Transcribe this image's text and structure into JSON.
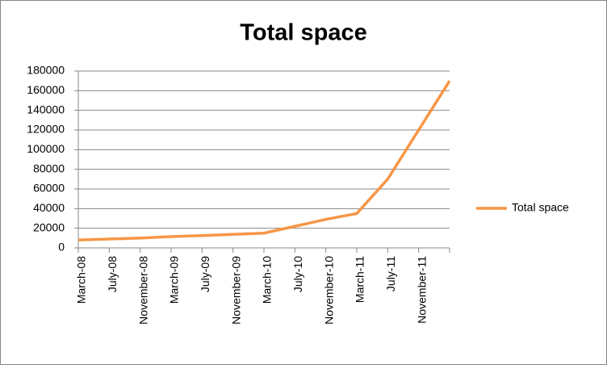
{
  "chart_data": {
    "type": "line",
    "title": "Total space",
    "categories": [
      "March-08",
      "July-08",
      "November-08",
      "March-09",
      "July-09",
      "November-09",
      "March-10",
      "July-10",
      "November-10",
      "March-11",
      "July-11",
      "November-11",
      null
    ],
    "series": [
      {
        "name": "Total space",
        "color": "#f79646",
        "values": [
          8000,
          9000,
          10000,
          11500,
          12500,
          13800,
          15000,
          22000,
          29000,
          35000,
          70000,
          120000,
          170000
        ]
      }
    ],
    "ylim": [
      0,
      180000
    ],
    "yticks": [
      0,
      20000,
      40000,
      60000,
      80000,
      100000,
      120000,
      140000,
      160000,
      180000
    ],
    "grid": true,
    "legend": "right"
  }
}
